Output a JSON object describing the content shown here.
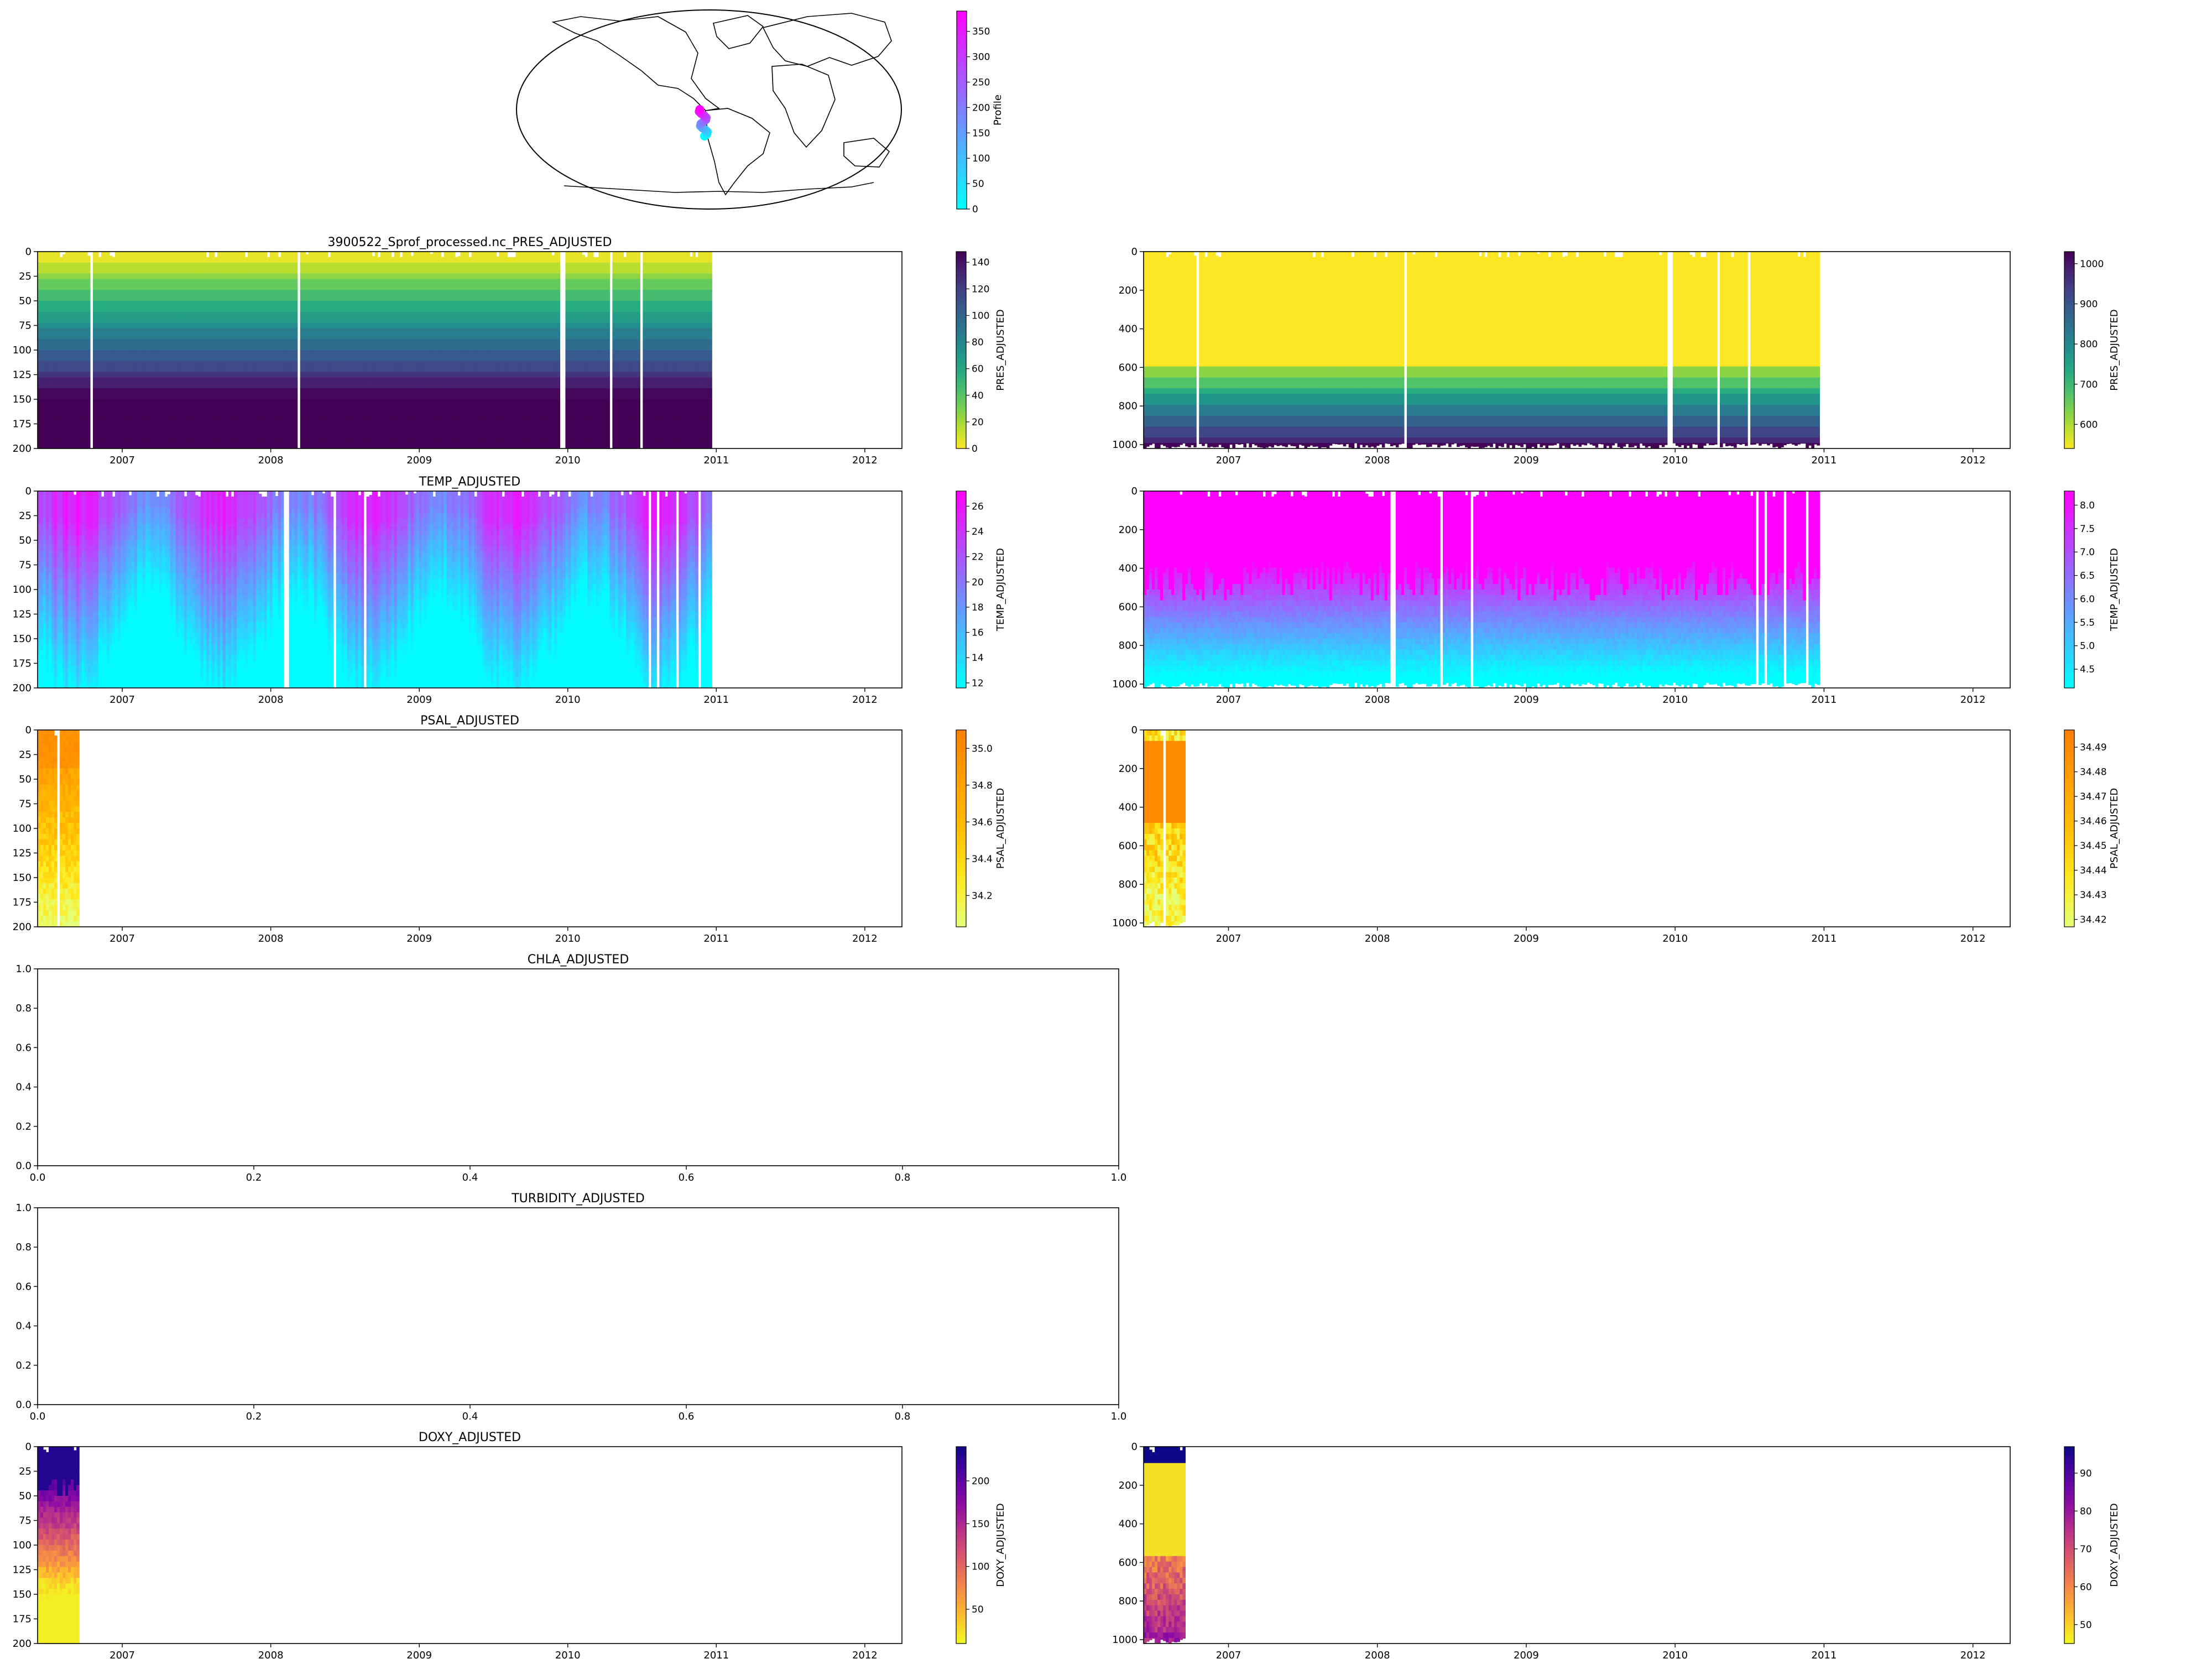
{
  "figure": {
    "map": {
      "colorbar_label": "Profile",
      "colorbar_ticks": [
        "0",
        "50",
        "100",
        "150",
        "200",
        "250",
        "300",
        "350"
      ],
      "colorbar_range": [
        0,
        390
      ],
      "colormap": "cool",
      "track_profiles": [
        0,
        30,
        60,
        90,
        120,
        150,
        180,
        210,
        240,
        270,
        300,
        330,
        360,
        390
      ]
    },
    "x_year_ticks": [
      "2007",
      "2008",
      "2009",
      "2010",
      "2011",
      "2012"
    ],
    "x_time_range": [
      2006.43,
      2012.25
    ],
    "shallow_depth_ticks": [
      "0",
      "25",
      "50",
      "75",
      "100",
      "125",
      "150",
      "175",
      "200"
    ],
    "deep_depth_ticks": [
      "0",
      "200",
      "400",
      "600",
      "800",
      "1000"
    ],
    "empty_axis_y_ticks": [
      "0.0",
      "0.2",
      "0.4",
      "0.6",
      "0.8",
      "1.0"
    ],
    "empty_axis_x_ticks": [
      "0.0",
      "0.2",
      "0.4",
      "0.6",
      "0.8",
      "1.0"
    ]
  },
  "chart_data": [
    {
      "id": "pres",
      "type": "heatmap",
      "title": "3900522_Sprof_processed.nc_PRES_ADJUSTED",
      "cbar_label": "PRES_ADJUSTED",
      "colormap": "viridis_r",
      "shallow": {
        "ylim": [
          200,
          0
        ],
        "x_end": 2010.97,
        "vmin": 0,
        "vmax": 148,
        "cbar_ticks": [
          "0",
          "20",
          "40",
          "60",
          "80",
          "100",
          "120",
          "140"
        ]
      },
      "deep": {
        "ylim": [
          1020,
          0
        ],
        "x_end": 2010.97,
        "vmin": 540,
        "vmax": 1030,
        "cbar_ticks": [
          "600",
          "700",
          "800",
          "900",
          "1000"
        ]
      }
    },
    {
      "id": "temp",
      "type": "heatmap",
      "title": "TEMP_ADJUSTED",
      "cbar_label": "TEMP_ADJUSTED",
      "colormap": "cool",
      "shallow": {
        "ylim": [
          200,
          0
        ],
        "x_end": 2010.97,
        "vmin": 11.6,
        "vmax": 27.2,
        "cbar_ticks": [
          "12",
          "14",
          "16",
          "18",
          "20",
          "22",
          "24",
          "26"
        ]
      },
      "deep": {
        "ylim": [
          1020,
          0
        ],
        "x_end": 2010.97,
        "vmin": 4.1,
        "vmax": 8.3,
        "cbar_ticks": [
          "4.5",
          "5.0",
          "5.5",
          "6.0",
          "6.5",
          "7.0",
          "7.5",
          "8.0"
        ]
      }
    },
    {
      "id": "psal",
      "type": "heatmap",
      "title": "PSAL_ADJUSTED",
      "cbar_label": "PSAL_ADJUSTED",
      "colormap": "Wistia",
      "shallow": {
        "ylim": [
          200,
          0
        ],
        "x_end": 2006.71,
        "vmin": 34.03,
        "vmax": 35.1,
        "cbar_ticks": [
          "34.2",
          "34.4",
          "34.6",
          "34.8",
          "35.0"
        ]
      },
      "deep": {
        "ylim": [
          1020,
          0
        ],
        "x_end": 2006.71,
        "vmin": 34.417,
        "vmax": 34.497,
        "cbar_ticks": [
          "34.42",
          "34.43",
          "34.44",
          "34.45",
          "34.46",
          "34.47",
          "34.48",
          "34.49"
        ]
      }
    },
    {
      "id": "chla",
      "type": "heatmap",
      "title": "CHLA_ADJUSTED",
      "empty": true,
      "xlim": [
        0,
        1
      ],
      "ylim": [
        0,
        1
      ]
    },
    {
      "id": "turb",
      "type": "heatmap",
      "title": "TURBIDITY_ADJUSTED",
      "empty": true,
      "xlim": [
        0,
        1
      ],
      "ylim": [
        0,
        1
      ]
    },
    {
      "id": "doxy",
      "type": "heatmap",
      "title": "DOXY_ADJUSTED",
      "cbar_label": "DOXY_ADJUSTED",
      "colormap": "plasma_r",
      "shallow": {
        "ylim": [
          200,
          0
        ],
        "x_end": 2006.71,
        "vmin": 10,
        "vmax": 240,
        "cbar_ticks": [
          "50",
          "100",
          "150",
          "200"
        ]
      },
      "deep": {
        "ylim": [
          1020,
          0
        ],
        "x_end": 2006.71,
        "vmin": 45,
        "vmax": 97,
        "cbar_ticks": [
          "50",
          "60",
          "70",
          "80",
          "90"
        ]
      }
    }
  ]
}
